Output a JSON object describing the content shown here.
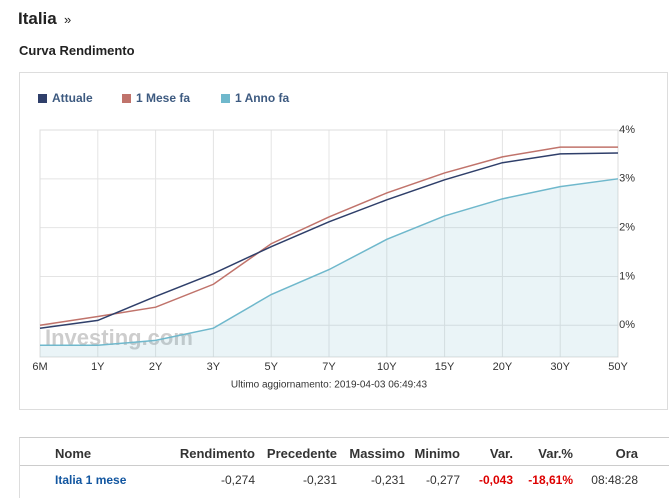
{
  "header": {
    "title": "Italia",
    "arrow": "»",
    "subtitle": "Curva Rendimento"
  },
  "chart_data": {
    "type": "line",
    "categories": [
      "6M",
      "1Y",
      "2Y",
      "3Y",
      "5Y",
      "7Y",
      "10Y",
      "15Y",
      "20Y",
      "30Y",
      "50Y"
    ],
    "series": [
      {
        "name": "Attuale",
        "color": "#2f3f6a",
        "values": [
          -0.06,
          0.1,
          0.59,
          1.06,
          1.61,
          2.12,
          2.57,
          2.98,
          3.33,
          3.51,
          3.53
        ]
      },
      {
        "name": "1 Mese fa",
        "color": "#c0736b",
        "values": [
          0.0,
          0.18,
          0.37,
          0.84,
          1.67,
          2.22,
          2.71,
          3.12,
          3.45,
          3.65,
          3.65
        ]
      },
      {
        "name": "1 Anno fa",
        "color": "#6fb8cc",
        "area": true,
        "values": [
          -0.41,
          -0.41,
          -0.31,
          -0.06,
          0.63,
          1.14,
          1.76,
          2.24,
          2.59,
          2.84,
          3.0
        ]
      }
    ],
    "ylim": [
      -0.65,
      4
    ],
    "yticks": [
      {
        "value": 0,
        "label": "0%"
      },
      {
        "value": 1,
        "label": "1%"
      },
      {
        "value": 2,
        "label": "2%"
      },
      {
        "value": 3,
        "label": "3%"
      },
      {
        "value": 4,
        "label": "4%"
      }
    ],
    "grid": true,
    "watermark": "Investing.com",
    "note": "Ultimo aggiornamento: 2019-04-03 06:49:43"
  },
  "table": {
    "columns": [
      "Nome",
      "Rendimento",
      "Precedente",
      "Massimo",
      "Minimo",
      "Var.",
      "Var.%",
      "Ora"
    ],
    "rows": [
      [
        "Italia 1 mese",
        "-0,274",
        "-0,231",
        "-0,231",
        "-0,277",
        "-0,043",
        "-18,61%",
        "08:48:28"
      ]
    ]
  }
}
